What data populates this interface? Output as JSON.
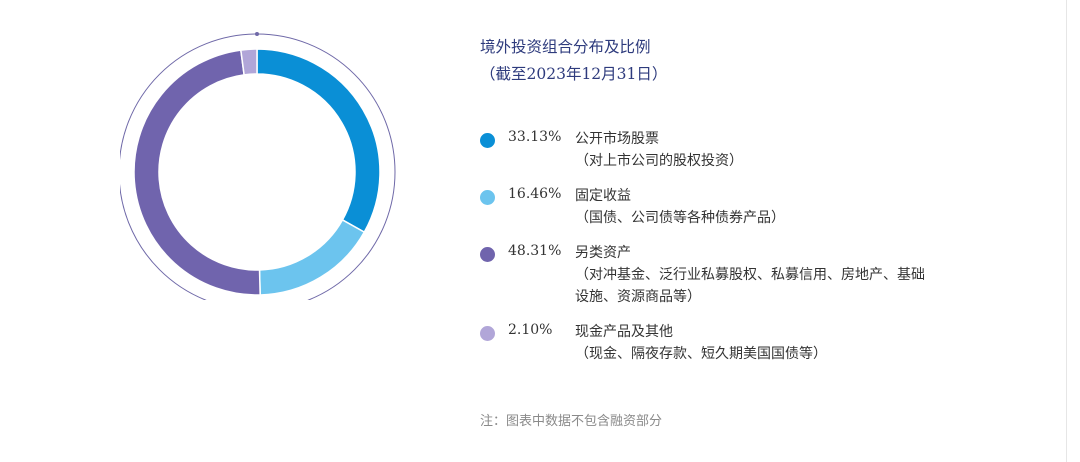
{
  "title": {
    "line1": "境外投资组合分布及比例",
    "line2": "（截至2023年12月31日）"
  },
  "chart_data": {
    "type": "pie",
    "style": "donut",
    "categories": [
      "公开市场股票",
      "固定收益",
      "另类资产",
      "现金产品及其他"
    ],
    "values": [
      33.13,
      16.46,
      48.31,
      2.1
    ],
    "unit": "%"
  },
  "legend": [
    {
      "percent": "33.13%",
      "label": "公开市场股票",
      "sub": "（对上市公司的股权投资）",
      "color": "#0a8fd6"
    },
    {
      "percent": "16.46%",
      "label": "固定收益",
      "sub": "（国债、公司债等各种债券产品）",
      "color": "#6cc4ee"
    },
    {
      "percent": "48.31%",
      "label": "另类资产",
      "sub": "（对冲基金、泛行业私募股权、私募信用、房地产、基础设施、资源商品等）",
      "color": "#7064ad"
    },
    {
      "percent": "2.10%",
      "label": "现金产品及其他",
      "sub": "（现金、隔夜存款、短久期美国国债等）",
      "color": "#b1a6d8"
    }
  ],
  "note": "注：图表中数据不包含融资部分"
}
